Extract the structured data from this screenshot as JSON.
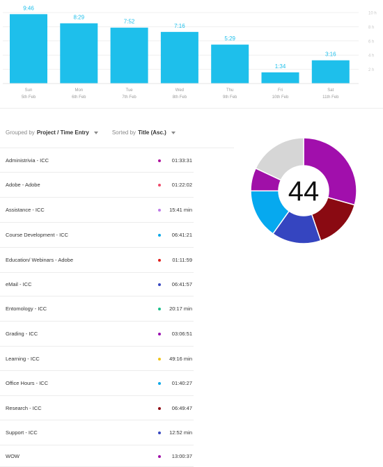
{
  "chart_data": {
    "type": "bar",
    "categories": [
      "Sun",
      "Mon",
      "Tue",
      "Wed",
      "Thu",
      "Fri",
      "Sat"
    ],
    "dates": [
      "5th Feb",
      "6th Feb",
      "7th Feb",
      "8th Feb",
      "9th Feb",
      "10th Feb",
      "11th Feb"
    ],
    "labels": [
      "9:46",
      "8:29",
      "7:52",
      "7:16",
      "5:29",
      "1:34",
      "3:16"
    ],
    "values": [
      9.77,
      8.48,
      7.87,
      7.27,
      5.48,
      1.57,
      3.27
    ],
    "ylim": [
      0,
      10
    ],
    "yticks": [
      0,
      2,
      4,
      6,
      8,
      10
    ],
    "ytick_labels": [
      "",
      "2 h",
      "4 h",
      "6 h",
      "8 h",
      "10 h"
    ],
    "grid": true,
    "bar_color": "#1ebfeb"
  },
  "toolbar": {
    "grouped_prefix": "Grouped by",
    "grouped_value": "Project / Time Entry",
    "sorted_prefix": "Sorted by",
    "sorted_value": "Title (Asc.)"
  },
  "entries": [
    {
      "title": "Administrivia - ICC",
      "duration": "01:33:31",
      "color": "#b0139e"
    },
    {
      "title": "Adobe - Adobe",
      "duration": "01:22:02",
      "color": "#ee4b6a"
    },
    {
      "title": "Assistance - ICC",
      "duration": "15:41 min",
      "color": "#c07be8"
    },
    {
      "title": "Course Development - ICC",
      "duration": "06:41:21",
      "color": "#0aa8e8"
    },
    {
      "title": "Education/ Webinars - Adobe",
      "duration": "01:11:59",
      "color": "#e0201d"
    },
    {
      "title": "eMail - ICC",
      "duration": "06:41:57",
      "color": "#3848c0"
    },
    {
      "title": "Entomology - ICC",
      "duration": "20:17 min",
      "color": "#19c08a"
    },
    {
      "title": "Grading - ICC",
      "duration": "03:06:51",
      "color": "#9a0fb0"
    },
    {
      "title": "Learning - ICC",
      "duration": "49:16 min",
      "color": "#f0c419"
    },
    {
      "title": "Office Hours - ICC",
      "duration": "01:40:27",
      "color": "#0aa8e8"
    },
    {
      "title": "Research - ICC",
      "duration": "06:49:47",
      "color": "#8e0a14"
    },
    {
      "title": "Support - ICC",
      "duration": "12:52 min",
      "color": "#3848c0"
    },
    {
      "title": "WOW",
      "duration": "13:00:37",
      "color": "#a010a8"
    }
  ],
  "donut": {
    "center_label": "44",
    "segments": [
      {
        "value": 13.01,
        "color": "#a10fac"
      },
      {
        "value": 6.83,
        "color": "#8a0a12"
      },
      {
        "value": 6.7,
        "color": "#3545c0"
      },
      {
        "value": 6.69,
        "color": "#06a9ef"
      },
      {
        "value": 3.11,
        "color": "#a010a8"
      },
      {
        "value": 8.0,
        "color": "#d6d6d6"
      }
    ]
  }
}
